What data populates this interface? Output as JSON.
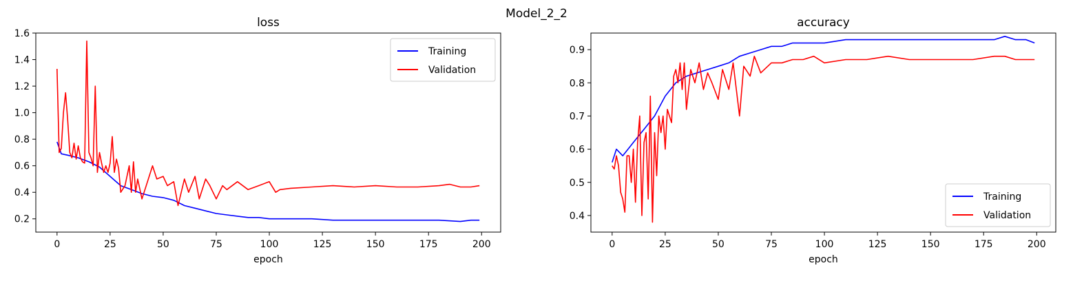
{
  "figure": {
    "suptitle": "Model_2_2"
  },
  "chart_data": [
    {
      "type": "line",
      "title": "loss",
      "xlabel": "epoch",
      "ylabel": "",
      "xlim": [
        -10,
        209
      ],
      "ylim": [
        0.1,
        1.6
      ],
      "xticks": [
        0,
        25,
        50,
        75,
        100,
        125,
        150,
        175,
        200
      ],
      "yticks": [
        0.2,
        0.4,
        0.6,
        0.8,
        1.0,
        1.2,
        1.4,
        1.6
      ],
      "ytick_format": 1,
      "grid": false,
      "legend_position": "upper right",
      "series": [
        {
          "name": "Training",
          "color": "#0000ff",
          "x": [
            0,
            2,
            5,
            10,
            15,
            20,
            25,
            30,
            35,
            40,
            45,
            50,
            55,
            60,
            65,
            70,
            75,
            80,
            85,
            90,
            95,
            100,
            110,
            120,
            130,
            140,
            150,
            160,
            170,
            180,
            190,
            195,
            199
          ],
          "y": [
            0.78,
            0.69,
            0.68,
            0.66,
            0.63,
            0.59,
            0.52,
            0.45,
            0.42,
            0.39,
            0.37,
            0.36,
            0.34,
            0.3,
            0.28,
            0.26,
            0.24,
            0.23,
            0.22,
            0.21,
            0.21,
            0.2,
            0.2,
            0.2,
            0.19,
            0.19,
            0.19,
            0.19,
            0.19,
            0.19,
            0.18,
            0.19,
            0.19
          ]
        },
        {
          "name": "Validation",
          "color": "#ff0000",
          "x": [
            0,
            1,
            2,
            3,
            4,
            5,
            6,
            7,
            8,
            9,
            10,
            11,
            12,
            13,
            14,
            15,
            16,
            17,
            18,
            19,
            20,
            21,
            22,
            23,
            24,
            25,
            26,
            27,
            28,
            29,
            30,
            32,
            34,
            35,
            36,
            37,
            38,
            40,
            42,
            45,
            47,
            50,
            52,
            55,
            57,
            60,
            62,
            65,
            67,
            70,
            72,
            75,
            78,
            80,
            85,
            90,
            95,
            100,
            103,
            105,
            110,
            120,
            130,
            140,
            150,
            160,
            170,
            180,
            185,
            190,
            195,
            199
          ],
          "y": [
            1.33,
            0.7,
            0.73,
            1.0,
            1.15,
            0.95,
            0.7,
            0.66,
            0.77,
            0.65,
            0.75,
            0.66,
            0.63,
            0.62,
            1.54,
            0.7,
            0.66,
            0.6,
            1.2,
            0.55,
            0.7,
            0.62,
            0.55,
            0.6,
            0.55,
            0.62,
            0.82,
            0.55,
            0.65,
            0.58,
            0.4,
            0.45,
            0.6,
            0.4,
            0.63,
            0.4,
            0.5,
            0.35,
            0.45,
            0.6,
            0.5,
            0.52,
            0.45,
            0.48,
            0.3,
            0.5,
            0.4,
            0.52,
            0.35,
            0.5,
            0.45,
            0.35,
            0.45,
            0.42,
            0.48,
            0.42,
            0.45,
            0.48,
            0.4,
            0.42,
            0.43,
            0.44,
            0.45,
            0.44,
            0.45,
            0.44,
            0.44,
            0.45,
            0.46,
            0.44,
            0.44,
            0.45
          ]
        }
      ]
    },
    {
      "type": "line",
      "title": "accuracy",
      "xlabel": "epoch",
      "ylabel": "",
      "xlim": [
        -10,
        209
      ],
      "ylim": [
        0.35,
        0.95
      ],
      "xticks": [
        0,
        25,
        50,
        75,
        100,
        125,
        150,
        175,
        200
      ],
      "yticks": [
        0.4,
        0.5,
        0.6,
        0.7,
        0.8,
        0.9
      ],
      "ytick_format": 1,
      "grid": false,
      "legend_position": "lower right",
      "series": [
        {
          "name": "Training",
          "color": "#0000ff",
          "x": [
            0,
            2,
            5,
            10,
            15,
            20,
            25,
            30,
            35,
            40,
            45,
            50,
            55,
            60,
            65,
            70,
            75,
            80,
            85,
            90,
            95,
            100,
            110,
            120,
            130,
            140,
            150,
            160,
            170,
            180,
            185,
            190,
            195,
            199
          ],
          "y": [
            0.56,
            0.6,
            0.58,
            0.62,
            0.66,
            0.7,
            0.76,
            0.8,
            0.82,
            0.83,
            0.84,
            0.85,
            0.86,
            0.88,
            0.89,
            0.9,
            0.91,
            0.91,
            0.92,
            0.92,
            0.92,
            0.92,
            0.93,
            0.93,
            0.93,
            0.93,
            0.93,
            0.93,
            0.93,
            0.93,
            0.94,
            0.93,
            0.93,
            0.92
          ]
        },
        {
          "name": "Validation",
          "color": "#ff0000",
          "x": [
            0,
            1,
            2,
            3,
            4,
            5,
            6,
            7,
            8,
            9,
            10,
            11,
            12,
            13,
            14,
            15,
            16,
            17,
            18,
            19,
            20,
            21,
            22,
            23,
            24,
            25,
            26,
            27,
            28,
            29,
            30,
            31,
            32,
            33,
            34,
            35,
            37,
            39,
            41,
            43,
            45,
            47,
            50,
            52,
            55,
            57,
            60,
            62,
            65,
            67,
            70,
            75,
            80,
            85,
            90,
            95,
            100,
            110,
            120,
            130,
            140,
            150,
            160,
            170,
            180,
            185,
            190,
            195,
            199
          ],
          "y": [
            0.55,
            0.54,
            0.58,
            0.55,
            0.47,
            0.45,
            0.41,
            0.58,
            0.58,
            0.5,
            0.6,
            0.44,
            0.62,
            0.7,
            0.4,
            0.62,
            0.65,
            0.45,
            0.76,
            0.38,
            0.65,
            0.52,
            0.7,
            0.65,
            0.7,
            0.6,
            0.72,
            0.7,
            0.68,
            0.82,
            0.84,
            0.8,
            0.86,
            0.78,
            0.86,
            0.72,
            0.84,
            0.8,
            0.86,
            0.78,
            0.83,
            0.8,
            0.75,
            0.84,
            0.78,
            0.86,
            0.7,
            0.85,
            0.82,
            0.88,
            0.83,
            0.86,
            0.86,
            0.87,
            0.87,
            0.88,
            0.86,
            0.87,
            0.87,
            0.88,
            0.87,
            0.87,
            0.87,
            0.87,
            0.88,
            0.88,
            0.87,
            0.87,
            0.87
          ]
        }
      ]
    }
  ]
}
